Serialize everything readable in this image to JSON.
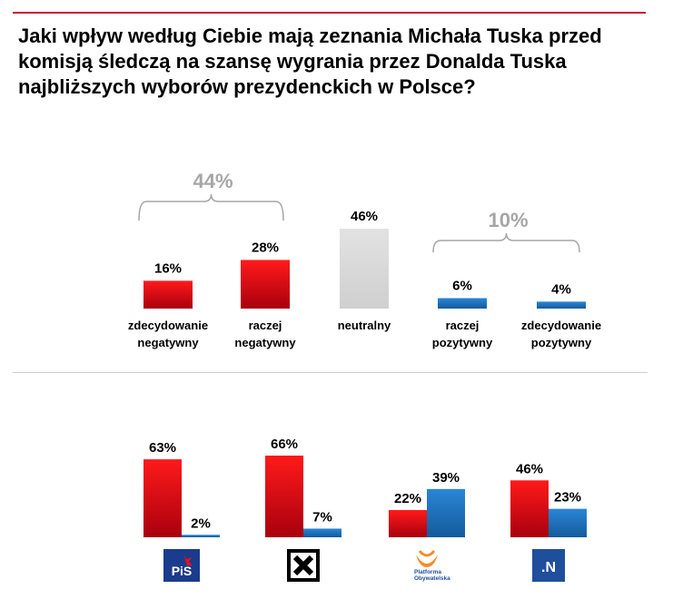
{
  "title": "Jaki wpływ według Ciebie mają zeznania Michała Tuska przed komisją śledczą na szansę wygrania przez Donalda Tuska najbliższych wyborów prezydenckich w Polsce?",
  "colors": {
    "red": "#e8101a",
    "blue": "#1f6fbd",
    "gray": "#d9d9d9",
    "accent_rule": "#c8102e"
  },
  "chart_data": [
    {
      "type": "bar",
      "categories": [
        [
          "zdecydowanie",
          "negatywny"
        ],
        [
          "raczej",
          "negatywny"
        ],
        [
          "neutralny"
        ],
        [
          "raczej",
          "pozytywny"
        ],
        [
          "zdecydowanie",
          "pozytywny"
        ]
      ],
      "values": [
        16,
        28,
        46,
        6,
        4
      ],
      "value_labels": [
        "16%",
        "28%",
        "46%",
        "6%",
        "4%"
      ],
      "bar_colors": [
        "red",
        "red",
        "gray",
        "blue",
        "blue"
      ],
      "groups": [
        {
          "label": "44%",
          "value": 44,
          "from": 0,
          "to": 1
        },
        {
          "label": "10%",
          "value": 10,
          "from": 3,
          "to": 4
        }
      ]
    },
    {
      "type": "bar",
      "categories": [
        "PiS",
        "Kukiz'15",
        "Platforma Obywatelska",
        ".N"
      ],
      "series": [
        {
          "values": [
            63,
            66,
            22,
            46
          ],
          "labels": [
            "63%",
            "66%",
            "22%",
            "46%"
          ],
          "color": "red"
        },
        {
          "values": [
            2,
            7,
            39,
            23
          ],
          "labels": [
            "2%",
            "7%",
            "39%",
            "23%"
          ],
          "color": "blue"
        }
      ],
      "logos": [
        {
          "icon": "pis-logo",
          "text": "PiS"
        },
        {
          "icon": "kukiz-logo",
          "text": ""
        },
        {
          "icon": "po-logo",
          "text": [
            "Platforma",
            "Obywatelska"
          ]
        },
        {
          "icon": "nowoczesna-logo",
          "text": ".N"
        }
      ]
    }
  ]
}
